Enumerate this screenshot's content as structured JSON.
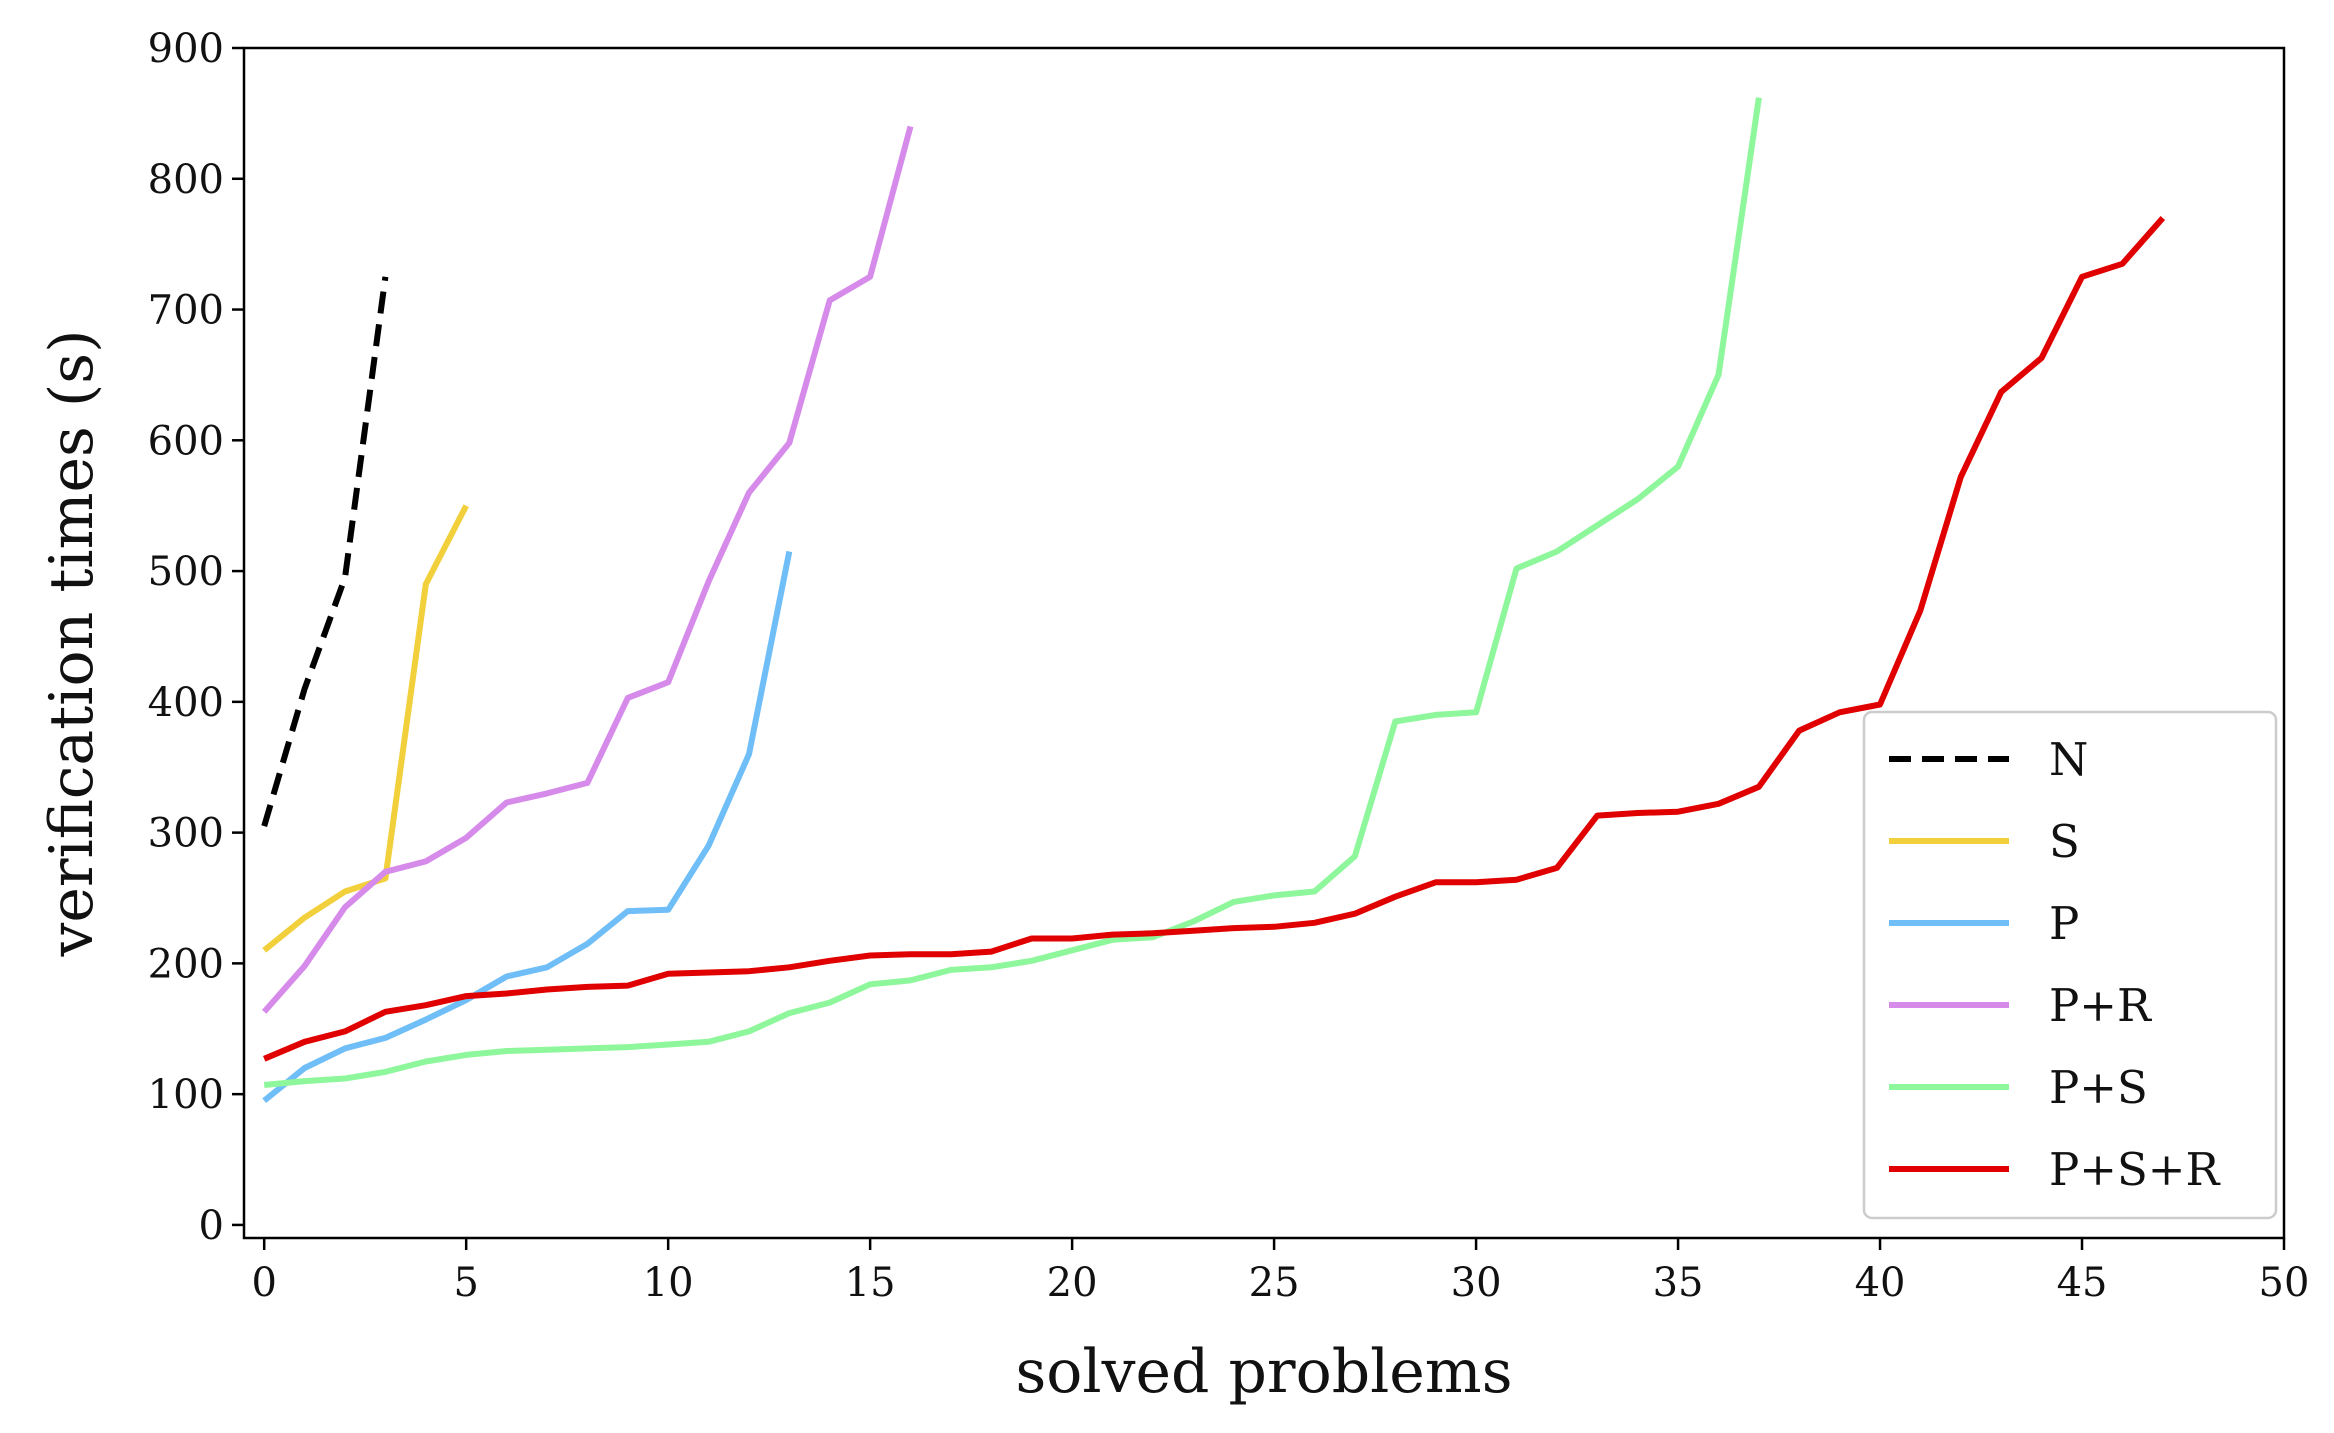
{
  "chart_data": {
    "type": "line",
    "xlabel": "solved problems",
    "ylabel": "verification times (s)",
    "xlim": [
      -0.5,
      50
    ],
    "ylim": [
      -10,
      900
    ],
    "xticks": [
      0,
      5,
      10,
      15,
      20,
      25,
      30,
      35,
      40,
      45,
      50
    ],
    "yticks": [
      0,
      100,
      200,
      300,
      400,
      500,
      600,
      700,
      800,
      900
    ],
    "grid": false,
    "legend_position": "lower-right",
    "series": [
      {
        "name": "N",
        "color": "#000000",
        "dashed": true,
        "x": [
          0,
          1,
          2,
          3
        ],
        "y": [
          305,
          410,
          495,
          725
        ]
      },
      {
        "name": "S",
        "color": "#f2d03b",
        "dashed": false,
        "x": [
          0,
          1,
          2,
          3,
          4,
          5
        ],
        "y": [
          210,
          235,
          255,
          265,
          490,
          550
        ]
      },
      {
        "name": "P",
        "color": "#6fbef7",
        "dashed": false,
        "x": [
          0,
          1,
          2,
          3,
          4,
          5,
          6,
          7,
          8,
          9,
          10,
          11,
          12,
          13
        ],
        "y": [
          95,
          120,
          135,
          143,
          157,
          172,
          190,
          197,
          215,
          240,
          241,
          290,
          360,
          515
        ]
      },
      {
        "name": "P+R",
        "color": "#d68beb",
        "dashed": false,
        "x": [
          0,
          1,
          2,
          3,
          4,
          5,
          6,
          7,
          8,
          9,
          10,
          11,
          12,
          13,
          14,
          15,
          16
        ],
        "y": [
          163,
          198,
          243,
          270,
          278,
          296,
          323,
          330,
          338,
          403,
          415,
          492,
          560,
          598,
          707,
          725,
          840
        ]
      },
      {
        "name": "P+S",
        "color": "#8ef79b",
        "dashed": false,
        "x": [
          0,
          1,
          2,
          3,
          4,
          5,
          6,
          7,
          8,
          9,
          10,
          11,
          12,
          13,
          14,
          15,
          16,
          17,
          18,
          19,
          20,
          21,
          22,
          23,
          24,
          25,
          26,
          27,
          28,
          29,
          30,
          31,
          32,
          33,
          34,
          35,
          36,
          37
        ],
        "y": [
          107,
          110,
          112,
          117,
          125,
          130,
          133,
          134,
          135,
          136,
          138,
          140,
          148,
          162,
          170,
          184,
          187,
          195,
          197,
          202,
          210,
          218,
          220,
          232,
          247,
          252,
          255,
          282,
          385,
          390,
          392,
          502,
          515,
          535,
          555,
          580,
          650,
          862
        ]
      },
      {
        "name": "P+S+R",
        "color": "#e00000",
        "dashed": false,
        "x": [
          0,
          1,
          2,
          3,
          4,
          5,
          6,
          7,
          8,
          9,
          10,
          11,
          12,
          13,
          14,
          15,
          16,
          17,
          18,
          19,
          20,
          21,
          22,
          23,
          24,
          25,
          26,
          27,
          28,
          29,
          30,
          31,
          32,
          33,
          34,
          35,
          36,
          37,
          38,
          39,
          40,
          41,
          42,
          43,
          44,
          45,
          46,
          47
        ],
        "y": [
          127,
          140,
          148,
          163,
          168,
          175,
          177,
          180,
          182,
          183,
          192,
          193,
          194,
          197,
          202,
          206,
          207,
          207,
          209,
          219,
          219,
          222,
          223,
          225,
          227,
          228,
          231,
          238,
          251,
          262,
          262,
          264,
          273,
          313,
          315,
          316,
          322,
          335,
          378,
          392,
          398,
          470,
          572,
          637,
          663,
          725,
          735,
          770
        ]
      }
    ]
  }
}
